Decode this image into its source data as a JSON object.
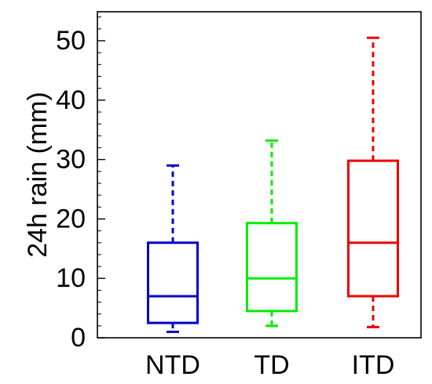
{
  "chart_data": {
    "type": "boxplot",
    "title": "",
    "xlabel": "",
    "ylabel": "24h rain (mm)",
    "ylim": [
      0,
      55
    ],
    "yticks": [
      0,
      10,
      20,
      30,
      40,
      50
    ],
    "minor_tick_step": 2,
    "grid": false,
    "series": [
      {
        "name": "NTD",
        "color": "#0000cc",
        "whisker_low": 1,
        "q1": 2.5,
        "median": 7,
        "q3": 16,
        "whisker_high": 29
      },
      {
        "name": "TD",
        "color": "#00ee00",
        "whisker_low": 2,
        "q1": 4.5,
        "median": 10,
        "q3": 19.3,
        "whisker_high": 33.2
      },
      {
        "name": "ITD",
        "color": "#ee0000",
        "whisker_low": 1.8,
        "q1": 7,
        "median": 16,
        "q3": 29.8,
        "whisker_high": 50.5
      }
    ]
  }
}
